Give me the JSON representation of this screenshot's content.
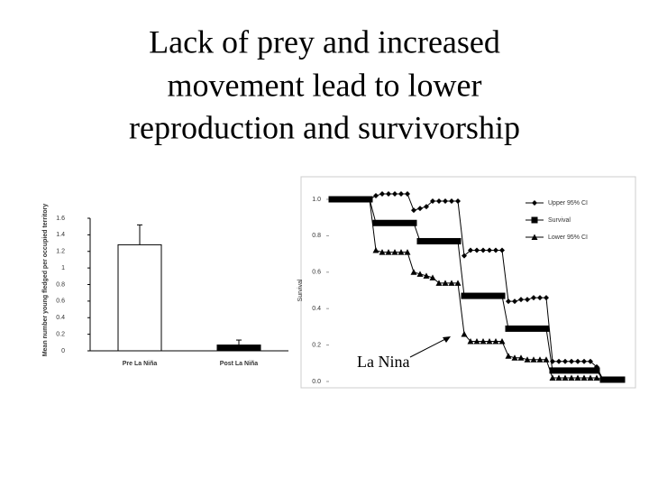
{
  "title": [
    "Lack of prey and increased",
    "movement lead to lower",
    "reproduction and survivorship"
  ],
  "chart_data": [
    {
      "type": "bar",
      "ylabel": "Mean number young fledged per occupied territory",
      "categories": [
        "Pre La Niña",
        "Post La Niña"
      ],
      "values": [
        1.28,
        0.07
      ],
      "errors": [
        0.24,
        0.06
      ],
      "colors": [
        "#ffffff",
        "#000000"
      ],
      "ylim": [
        0,
        1.6
      ],
      "yticks": [
        0,
        0.2,
        0.4,
        0.6,
        0.8,
        1,
        1.2,
        1.4,
        1.6
      ]
    },
    {
      "type": "line",
      "ylabel": "Survival",
      "legend": "upper right",
      "annotation": "La Nina",
      "ylim": [
        0,
        1.0
      ],
      "yticks": [
        {
          "value": 0,
          "label": "0.0"
        },
        0.2,
        0.4,
        0.6,
        0.8,
        {
          "value": 1,
          "label": "1.0"
        }
      ],
      "series": [
        {
          "name": "Upper 95% CI",
          "color": "#000000",
          "marker": "diamond",
          "values": [
            1,
            1,
            1,
            1,
            1,
            1,
            1,
            1.02,
            1.03,
            1.03,
            1.03,
            1.03,
            1.03,
            0.94,
            0.95,
            0.96,
            0.99,
            0.99,
            0.99,
            0.99,
            0.99,
            0.69,
            0.72,
            0.72,
            0.72,
            0.72,
            0.72,
            0.72,
            0.44,
            0.44,
            0.45,
            0.45,
            0.46,
            0.46,
            0.46,
            0.11,
            0.11,
            0.11,
            0.11,
            0.11,
            0.11,
            0.11,
            0.08,
            0.01,
            0.01,
            0.01,
            0.01
          ]
        },
        {
          "name": "Survival",
          "color": "#000000",
          "marker": "square",
          "values": [
            1,
            1,
            1,
            1,
            1,
            1,
            1,
            0.87,
            0.87,
            0.87,
            0.87,
            0.87,
            0.87,
            0.87,
            0.77,
            0.77,
            0.77,
            0.77,
            0.77,
            0.77,
            0.77,
            0.47,
            0.47,
            0.47,
            0.47,
            0.47,
            0.47,
            0.47,
            0.29,
            0.29,
            0.29,
            0.29,
            0.29,
            0.29,
            0.29,
            0.06,
            0.06,
            0.06,
            0.06,
            0.06,
            0.06,
            0.06,
            0.06,
            0.01,
            0.01,
            0.01,
            0.01
          ]
        },
        {
          "name": "Lower 95% CI",
          "color": "#000000",
          "marker": "triangle",
          "values": [
            1,
            1,
            1,
            1,
            1,
            1,
            1,
            0.72,
            0.71,
            0.71,
            0.71,
            0.71,
            0.71,
            0.6,
            0.59,
            0.58,
            0.57,
            0.54,
            0.54,
            0.54,
            0.54,
            0.26,
            0.22,
            0.22,
            0.22,
            0.22,
            0.22,
            0.22,
            0.14,
            0.13,
            0.13,
            0.12,
            0.12,
            0.12,
            0.12,
            0.02,
            0.02,
            0.02,
            0.02,
            0.02,
            0.02,
            0.02,
            0.02,
            0.01,
            0.01,
            0.01,
            0.01
          ]
        }
      ]
    }
  ]
}
